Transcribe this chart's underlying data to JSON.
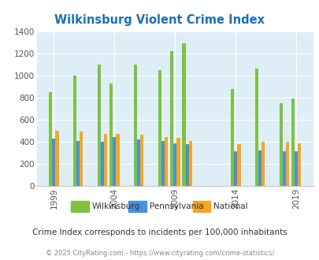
{
  "title": "Wilkinsburg Violent Crime Index",
  "title_color": "#1a6fba",
  "subtitle": "Crime Index corresponds to incidents per 100,000 inhabitants",
  "footer": "© 2025 CityRating.com - https://www.cityrating.com/crime-statistics/",
  "years": [
    1999,
    2001,
    2003,
    2004,
    2006,
    2008,
    2009,
    2010,
    2014,
    2016,
    2018,
    2019
  ],
  "wilkinsburg": [
    850,
    1000,
    1100,
    925,
    1100,
    1050,
    1220,
    1290,
    880,
    1060,
    745,
    790
  ],
  "pennsylvania": [
    425,
    405,
    400,
    440,
    420,
    405,
    385,
    375,
    315,
    320,
    315,
    310
  ],
  "national": [
    500,
    490,
    470,
    470,
    465,
    445,
    435,
    405,
    380,
    400,
    400,
    385
  ],
  "wilkinsburg_color": "#7dc242",
  "pennsylvania_color": "#4a90d9",
  "national_color": "#f5a623",
  "bg_color": "#ddeef6",
  "ylim": [
    0,
    1400
  ],
  "yticks": [
    0,
    200,
    400,
    600,
    800,
    1000,
    1200,
    1400
  ],
  "xtick_labels": [
    "1999",
    "2004",
    "2009",
    "2014",
    "2019"
  ],
  "xtick_year_positions": [
    1999,
    2004,
    2009,
    2014,
    2019
  ],
  "bar_width": 0.27
}
